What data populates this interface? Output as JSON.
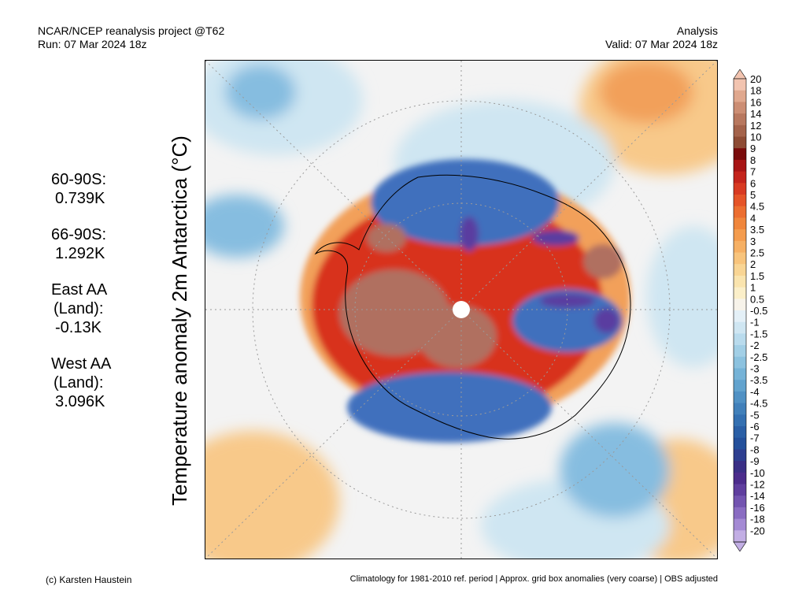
{
  "header": {
    "left_line1": "NCAR/NCEP reanalysis project @T62",
    "left_line2": "Run: 07 Mar 2024 18z",
    "right_line1": "Analysis",
    "right_line2": "Valid: 07 Mar 2024 18z"
  },
  "side_stats": [
    {
      "label": "60-90S:",
      "label2": "",
      "value": "0.739K"
    },
    {
      "label": "66-90S:",
      "label2": "",
      "value": "1.292K"
    },
    {
      "label": "East AA",
      "label2": "(Land):",
      "value": "-0.13K"
    },
    {
      "label": "West AA",
      "label2": "(Land):",
      "value": "3.096K"
    }
  ],
  "y_axis_label": "Temperature anomaly 2m Antarctica (°C)",
  "colorbar": {
    "labels": [
      "20",
      "18",
      "16",
      "14",
      "12",
      "10",
      "9",
      "8",
      "7",
      "6",
      "5",
      "4.5",
      "4",
      "3.5",
      "3",
      "2.5",
      "2",
      "1.5",
      "1",
      "0.5",
      "-0.5",
      "-1",
      "-1.5",
      "-2",
      "-2.5",
      "-3",
      "-3.5",
      "-4",
      "-4.5",
      "-5",
      "-6",
      "-7",
      "-8",
      "-9",
      "-10",
      "-12",
      "-14",
      "-16",
      "-18",
      "-20"
    ],
    "colors": [
      "#f2c4b0",
      "#e0a88e",
      "#cc8e74",
      "#b8785f",
      "#a4634b",
      "#8e4c35",
      "#7a0c0c",
      "#a81515",
      "#c4241c",
      "#d83a22",
      "#e55428",
      "#ec6e30",
      "#f0863c",
      "#f49c4e",
      "#f6b064",
      "#f8c47c",
      "#f9d594",
      "#fae4ae",
      "#fbefc9",
      "#f7f3ea",
      "#e4f0f7",
      "#cfe6f2",
      "#b9dbed",
      "#a2cfe6",
      "#8cc2df",
      "#76b3d7",
      "#62a3ce",
      "#5091c4",
      "#4180ba",
      "#3470b1",
      "#2a5fa6",
      "#24509b",
      "#2e3f90",
      "#3a2f86",
      "#4c2c8c",
      "#5f3e9e",
      "#7354b0",
      "#8a6cc2",
      "#a48ad4",
      "#c2aee4"
    ]
  },
  "map": {
    "colors": {
      "ocean_neutral": "#f3f3f3",
      "warm_light": "#f8c98a",
      "warm_mid": "#f2a05a",
      "warm_strong": "#d8321f",
      "warm_extreme": "#b07060",
      "cool_light": "#cfe6f2",
      "cool_mid": "#86bde0",
      "cool_strong": "#3f6fbd",
      "cool_extreme": "#5a3ca0",
      "coast": "#000000",
      "grid": "#9a9a9a"
    }
  },
  "footer": {
    "left": "(c) Karsten Haustein",
    "right": "Climatology for 1981-2010 ref. period | Approx. grid box anomalies (very coarse) | OBS adjusted"
  }
}
